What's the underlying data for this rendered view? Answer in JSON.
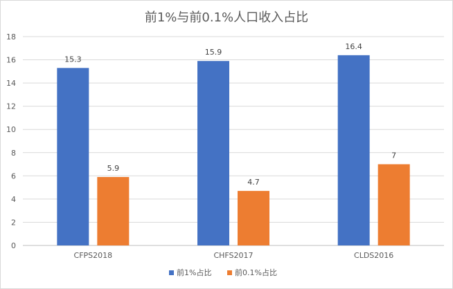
{
  "chart_data": {
    "type": "bar",
    "title": "前1%与前0.1%人口收入占比",
    "xlabel": "",
    "ylabel": "",
    "categories": [
      "CFPS2018",
      "CHFS2017",
      "CLDS2016"
    ],
    "series": [
      {
        "name": "前1%占比",
        "values": [
          15.3,
          15.9,
          16.4
        ],
        "color": "#4472c4"
      },
      {
        "name": "前0.1%占比",
        "values": [
          5.9,
          4.7,
          7
        ],
        "color": "#ed7d31"
      }
    ],
    "ylim": [
      0,
      18
    ],
    "yticks": [
      0,
      2,
      4,
      6,
      8,
      10,
      12,
      14,
      16,
      18
    ],
    "grid": true,
    "legend": "bottom"
  }
}
